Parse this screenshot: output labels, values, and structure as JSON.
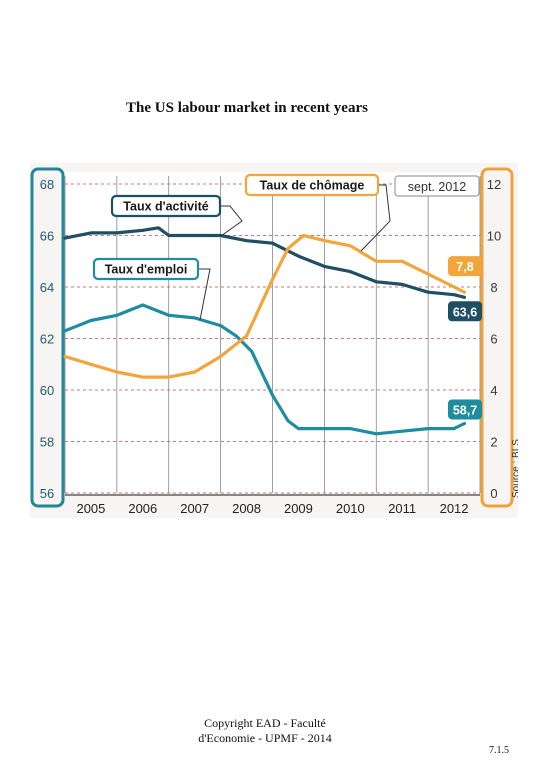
{
  "title": "The US labour market in recent years",
  "footer": {
    "line1": "Copyright EAD - Faculté",
    "line2": "d'Economie - UPMF - 2014"
  },
  "page_number": "7.1.5",
  "chart_data": {
    "type": "line",
    "title": "",
    "x_ticks": [
      "2005",
      "2006",
      "2007",
      "2008",
      "2009",
      "2010",
      "2011",
      "2012"
    ],
    "x_range": [
      2005.0,
      2013.0
    ],
    "left_axis": {
      "range": [
        56,
        68
      ],
      "ticks": [
        "56",
        "58",
        "60",
        "62",
        "64",
        "66",
        "68"
      ],
      "color": "#22879a"
    },
    "right_axis": {
      "range": [
        0,
        12
      ],
      "ticks": [
        "0",
        "2",
        "4",
        "6",
        "8",
        "10",
        "12"
      ],
      "color": "#f0a23a"
    },
    "source": "Source : BLS",
    "date_badge": "sept. 2012",
    "grid": true,
    "colors": {
      "participation": "#1f4f63",
      "employment": "#1d8d9f",
      "unemployment": "#f2a53a"
    },
    "series": [
      {
        "name": "Taux d'activité",
        "axis": "left",
        "end_label": "63,6",
        "x": [
          2005.0,
          2005.5,
          2006.0,
          2006.5,
          2006.8,
          2007.0,
          2007.5,
          2008.0,
          2008.5,
          2009.0,
          2009.5,
          2010.0,
          2010.5,
          2011.0,
          2011.5,
          2012.0,
          2012.5,
          2012.7
        ],
        "values": [
          65.9,
          66.1,
          66.1,
          66.2,
          66.3,
          66.0,
          66.0,
          66.0,
          65.8,
          65.7,
          65.2,
          64.8,
          64.6,
          64.2,
          64.1,
          63.8,
          63.7,
          63.6
        ]
      },
      {
        "name": "Taux d'emploi",
        "axis": "left",
        "end_label": "58,7",
        "x": [
          2005.0,
          2005.5,
          2006.0,
          2006.5,
          2007.0,
          2007.5,
          2008.0,
          2008.3,
          2008.6,
          2009.0,
          2009.3,
          2009.5,
          2010.0,
          2010.5,
          2011.0,
          2011.5,
          2012.0,
          2012.5,
          2012.7
        ],
        "values": [
          62.3,
          62.7,
          62.9,
          63.3,
          62.9,
          62.8,
          62.5,
          62.1,
          61.5,
          59.8,
          58.8,
          58.5,
          58.5,
          58.5,
          58.3,
          58.4,
          58.5,
          58.5,
          58.7
        ]
      },
      {
        "name": "Taux de chômage",
        "axis": "right",
        "end_label": "7,8",
        "x": [
          2005.0,
          2005.5,
          2006.0,
          2006.5,
          2007.0,
          2007.5,
          2008.0,
          2008.5,
          2009.0,
          2009.3,
          2009.6,
          2010.0,
          2010.5,
          2011.0,
          2011.5,
          2012.0,
          2012.5,
          2012.7
        ],
        "values": [
          5.3,
          5.0,
          4.7,
          4.5,
          4.5,
          4.7,
          5.3,
          6.1,
          8.3,
          9.5,
          10.0,
          9.8,
          9.6,
          9.0,
          9.0,
          8.5,
          8.0,
          7.8
        ]
      }
    ]
  }
}
